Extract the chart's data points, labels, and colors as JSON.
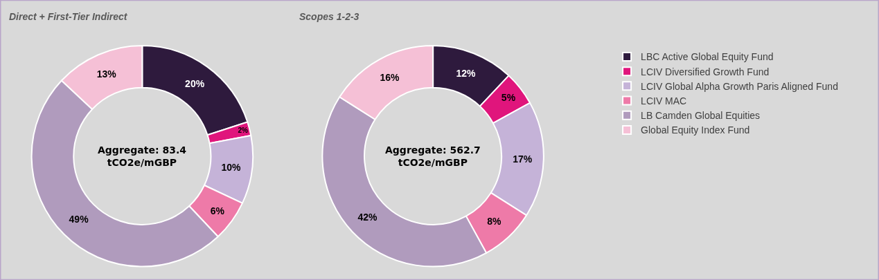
{
  "chart_data": [
    {
      "type": "donut",
      "title": "Direct + First-Tier Indirect",
      "annotations": [
        "Aggregate: 83.4 tCO2e/mGBP"
      ],
      "categories": [
        "LBC Active Global Equity Fund",
        "LCIV Diversified Growth Fund",
        "LCIV Global Alpha Growth Paris Aligned Fund",
        "LCIV MAC",
        "LB Camden Global Equities",
        "Global Equity Index Fund"
      ],
      "values": [
        20,
        2,
        10,
        6,
        49,
        13
      ],
      "value_labels": [
        "20%",
        "2%",
        "10%",
        "6%",
        "49%",
        "13%"
      ],
      "colors": [
        "#2e1a3d",
        "#e0157c",
        "#c5b3d8",
        "#ee7aa8",
        "#b09bbd",
        "#f5c0d6"
      ],
      "legend": "right"
    },
    {
      "type": "donut",
      "title": "Scopes 1-2-3",
      "annotations": [
        "Aggregate: 562.7 tCO2e/mGBP"
      ],
      "categories": [
        null,
        null,
        null,
        null,
        null,
        null
      ],
      "values": [
        12,
        5,
        17,
        8,
        42,
        16
      ],
      "value_labels": [
        "12%",
        "5%",
        "17%",
        "8%",
        "42%",
        "16%"
      ],
      "colors": [
        "#2e1a3d",
        "#e0157c",
        "#c5b3d8",
        "#ee7aa8",
        "#b09bbd",
        "#f5c0d6"
      ],
      "legend": false
    }
  ]
}
